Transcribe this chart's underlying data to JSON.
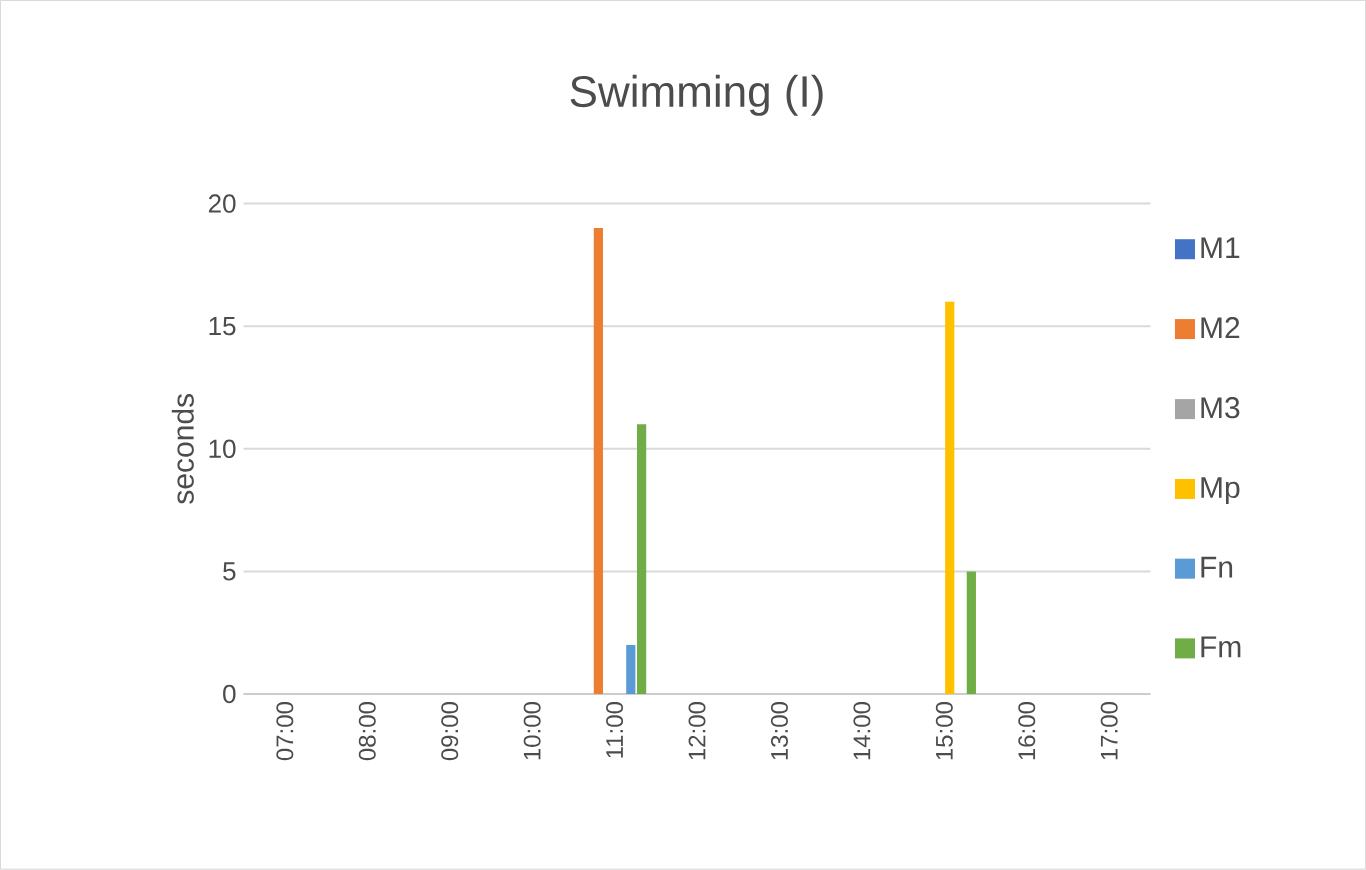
{
  "chart_data": {
    "type": "bar",
    "title": "Swimming (I)",
    "ylabel": "seconds",
    "categories": [
      "07:00",
      "08:00",
      "09:00",
      "10:00",
      "11:00",
      "12:00",
      "13:00",
      "14:00",
      "15:00",
      "16:00",
      "17:00"
    ],
    "series": [
      {
        "name": "M1",
        "color": "#4472c4",
        "values": [
          0,
          0,
          0,
          0,
          0,
          0,
          0,
          0,
          0,
          0,
          0
        ]
      },
      {
        "name": "M2",
        "color": "#ed7d31",
        "values": [
          0,
          0,
          0,
          0,
          19,
          0,
          0,
          0,
          0,
          0,
          0
        ]
      },
      {
        "name": "M3",
        "color": "#a5a5a5",
        "values": [
          0,
          0,
          0,
          0,
          0,
          0,
          0,
          0,
          0,
          0,
          0
        ]
      },
      {
        "name": "Mp",
        "color": "#ffc000",
        "values": [
          0,
          0,
          0,
          0,
          0,
          0,
          0,
          0,
          16,
          0,
          0
        ]
      },
      {
        "name": "Fn",
        "color": "#5b9bd5",
        "values": [
          0,
          0,
          0,
          0,
          2,
          0,
          0,
          0,
          0,
          0,
          0
        ]
      },
      {
        "name": "Fm",
        "color": "#70ad47",
        "values": [
          0,
          0,
          0,
          0,
          11,
          0,
          0,
          0,
          5,
          0,
          0
        ]
      }
    ],
    "ylim": [
      0,
      20
    ],
    "yticks": [
      0,
      5,
      10,
      15,
      20
    ],
    "grid": "y",
    "legend": "right"
  }
}
